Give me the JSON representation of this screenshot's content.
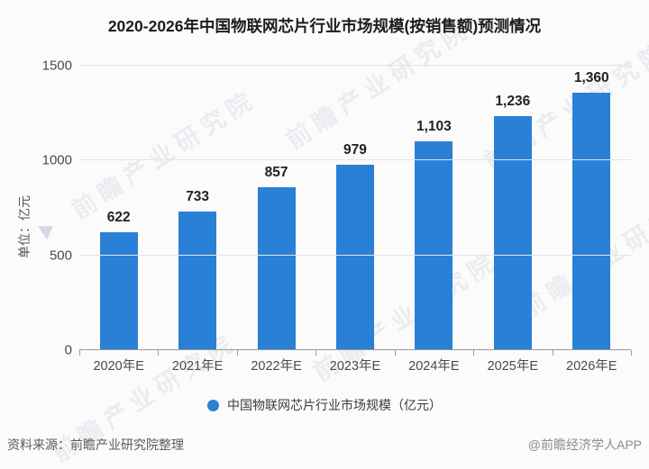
{
  "page": {
    "title": "2020-2026年中国物联网芯片行业市场规模(按销售额)预测情况",
    "source_note": "资料来源：前瞻产业研究院整理",
    "credit": "@前瞻经济学人APP",
    "watermark_text": "前瞻产业研究院"
  },
  "chart_data": {
    "type": "bar",
    "title": "2020-2026年中国物联网芯片行业市场规模(按销售额)预测情况",
    "categories": [
      "2020年E",
      "2021年E",
      "2022年E",
      "2023年E",
      "2024年E",
      "2025年E",
      "2026年E"
    ],
    "values": [
      622,
      733,
      857,
      979,
      1103,
      1236,
      1360
    ],
    "value_labels": [
      "622",
      "733",
      "857",
      "979",
      "1,103",
      "1,236",
      "1,360"
    ],
    "ylabel": "单位：亿元",
    "ylim": [
      0,
      1500
    ],
    "yticks": [
      0,
      500,
      1000,
      1500
    ],
    "grid": true,
    "legend": {
      "label": "中国物联网芯片行业市场规模（亿元）",
      "position": "bottom"
    },
    "colors": {
      "bar": "#2a80d7",
      "grid_line": "#e3e3e7",
      "axis_line": "#9a9a9a",
      "value_text": "#222222",
      "background": "#fbfbfc"
    }
  }
}
